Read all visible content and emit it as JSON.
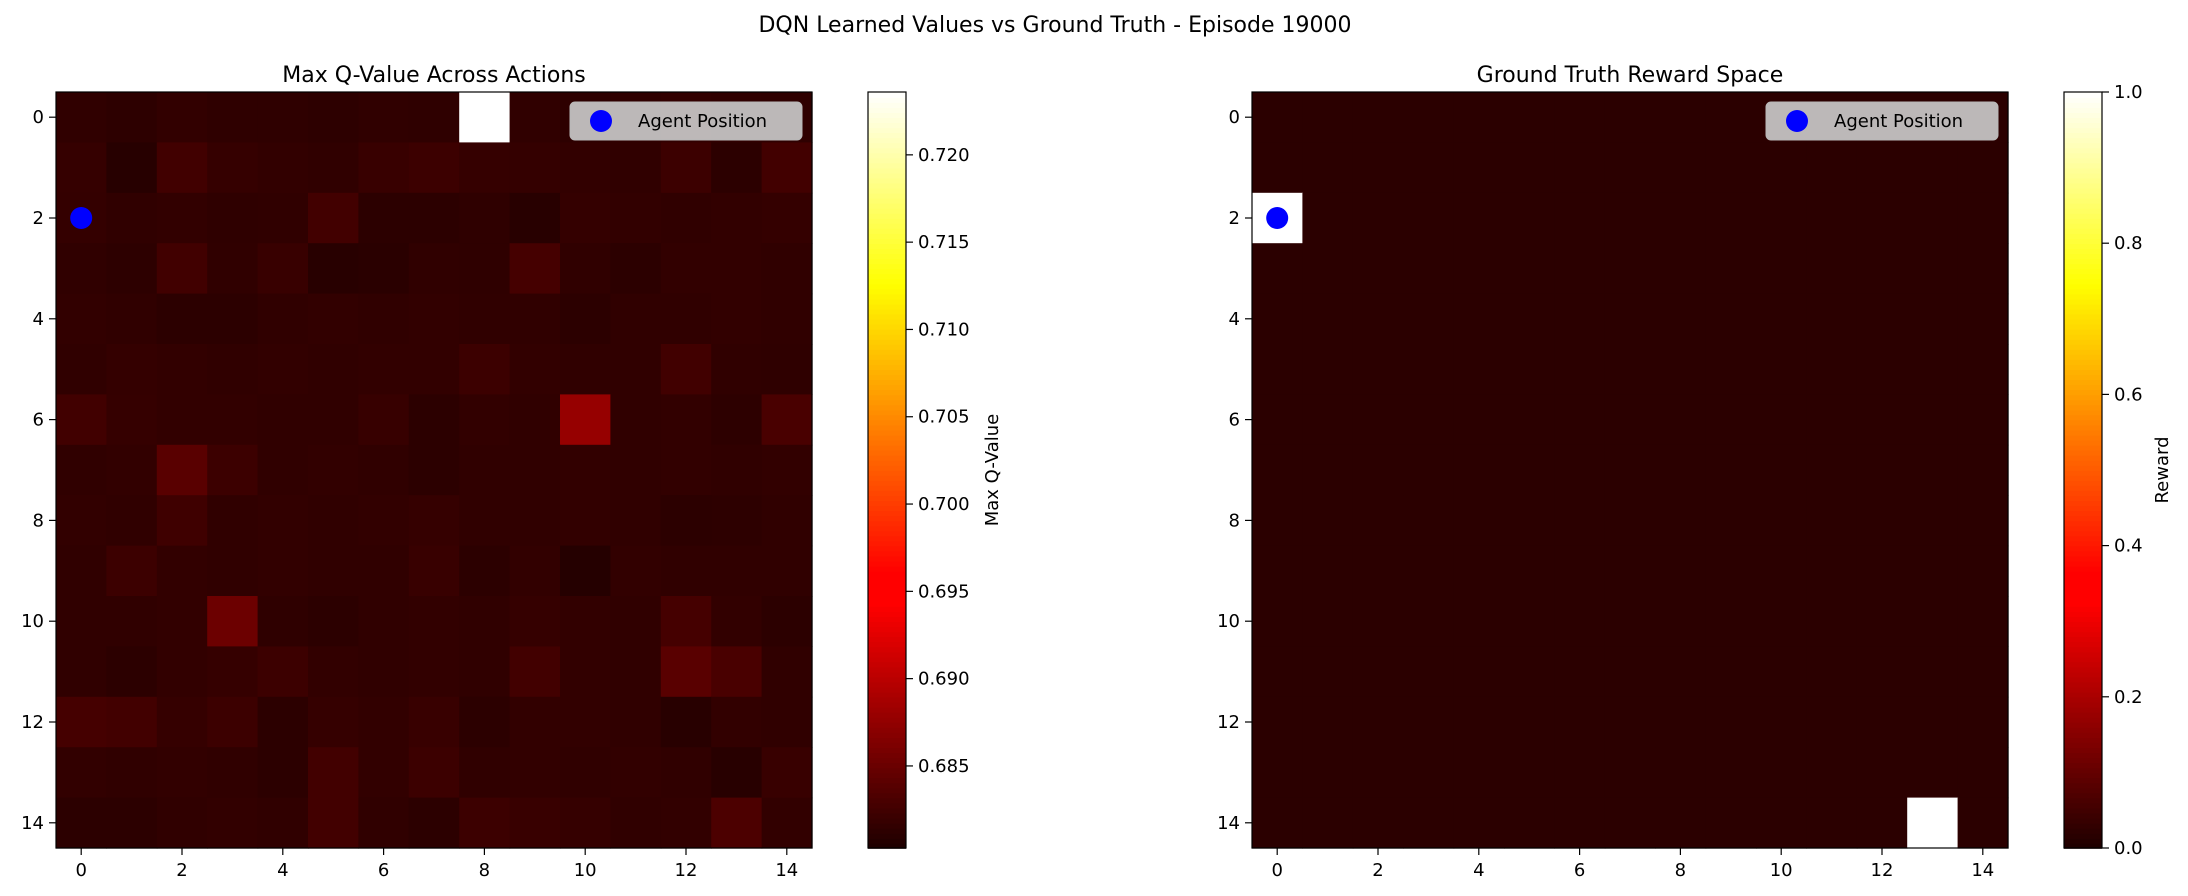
{
  "figure": {
    "suptitle": "DQN Learned Values vs Ground Truth - Episode 19000"
  },
  "chart_data": [
    {
      "type": "heatmap",
      "title": "Max Q-Value Across Actions",
      "xlabel": "",
      "ylabel": "",
      "colormap": "hot",
      "colorbar_label": "Max Q-Value",
      "vmin": 0.6803,
      "vmax": 0.7236,
      "colorbar_ticks": [
        0.685,
        0.69,
        0.695,
        0.7,
        0.705,
        0.71,
        0.715,
        0.72
      ],
      "x_ticks": [
        0,
        2,
        4,
        6,
        8,
        10,
        12,
        14
      ],
      "y_ticks": [
        0,
        2,
        4,
        6,
        8,
        10,
        12,
        14
      ],
      "legend": {
        "label": "Agent Position",
        "placement": "top-right",
        "marker_color": "#0000ff"
      },
      "agent_position": {
        "row": 2,
        "col": 0
      },
      "grid": [
        [
          0.6815,
          0.6813,
          0.6816,
          0.6814,
          0.6814,
          0.6813,
          0.6815,
          0.6814,
          0.7236,
          0.6815,
          0.6813,
          0.6814,
          0.6816,
          0.6815,
          0.6814
        ],
        [
          0.6818,
          0.6809,
          0.6825,
          0.6818,
          0.6816,
          0.6815,
          0.682,
          0.6822,
          0.6818,
          0.6817,
          0.6816,
          0.6815,
          0.6822,
          0.6812,
          0.6826
        ],
        [
          0.6817,
          0.6815,
          0.6816,
          0.6814,
          0.6815,
          0.6826,
          0.6812,
          0.6812,
          0.6814,
          0.681,
          0.6817,
          0.6816,
          0.6815,
          0.6816,
          0.6817
        ],
        [
          0.6815,
          0.6813,
          0.6825,
          0.6815,
          0.682,
          0.681,
          0.6811,
          0.6815,
          0.6814,
          0.6828,
          0.6815,
          0.6812,
          0.6816,
          0.6816,
          0.6815
        ],
        [
          0.6816,
          0.6815,
          0.6812,
          0.6812,
          0.6815,
          0.6816,
          0.6815,
          0.6816,
          0.6815,
          0.6815,
          0.6812,
          0.6815,
          0.6815,
          0.6816,
          0.6815
        ],
        [
          0.6815,
          0.6817,
          0.6816,
          0.6815,
          0.6816,
          0.6815,
          0.6816,
          0.6816,
          0.6822,
          0.6816,
          0.6815,
          0.6815,
          0.6825,
          0.6815,
          0.6814
        ],
        [
          0.6825,
          0.6818,
          0.6816,
          0.6816,
          0.6815,
          0.6815,
          0.6819,
          0.6812,
          0.6816,
          0.6815,
          0.6878,
          0.6815,
          0.6816,
          0.6813,
          0.683
        ],
        [
          0.6815,
          0.6816,
          0.684,
          0.6822,
          0.6815,
          0.6816,
          0.6815,
          0.6812,
          0.6815,
          0.6815,
          0.6816,
          0.6815,
          0.6816,
          0.6815,
          0.6816
        ],
        [
          0.6816,
          0.6815,
          0.6824,
          0.6815,
          0.6816,
          0.6815,
          0.6816,
          0.6818,
          0.6815,
          0.6815,
          0.6816,
          0.6815,
          0.6812,
          0.6813,
          0.6815
        ],
        [
          0.6815,
          0.6822,
          0.6816,
          0.6815,
          0.6816,
          0.6815,
          0.6815,
          0.682,
          0.6812,
          0.6816,
          0.6808,
          0.6816,
          0.6815,
          0.6815,
          0.6815
        ],
        [
          0.6815,
          0.6815,
          0.6816,
          0.6852,
          0.6814,
          0.6812,
          0.6815,
          0.6816,
          0.6815,
          0.6818,
          0.6816,
          0.6815,
          0.6828,
          0.6816,
          0.6812
        ],
        [
          0.6815,
          0.6812,
          0.6816,
          0.6818,
          0.6822,
          0.6816,
          0.6815,
          0.6816,
          0.6815,
          0.6826,
          0.6816,
          0.6815,
          0.684,
          0.683,
          0.6815
        ],
        [
          0.6828,
          0.6826,
          0.6818,
          0.6822,
          0.6812,
          0.6818,
          0.6816,
          0.682,
          0.6812,
          0.6816,
          0.6816,
          0.6815,
          0.681,
          0.6816,
          0.6815
        ],
        [
          0.6816,
          0.6815,
          0.6816,
          0.6815,
          0.6812,
          0.6826,
          0.6816,
          0.6822,
          0.6815,
          0.6816,
          0.6815,
          0.6816,
          0.6815,
          0.681,
          0.682
        ],
        [
          0.6812,
          0.6812,
          0.6815,
          0.6816,
          0.6815,
          0.6826,
          0.6815,
          0.6812,
          0.6822,
          0.682,
          0.6818,
          0.6815,
          0.6816,
          0.6832,
          0.6816
        ]
      ]
    },
    {
      "type": "heatmap",
      "title": "Ground Truth Reward Space",
      "xlabel": "",
      "ylabel": "",
      "colormap": "hot",
      "colorbar_label": "Reward",
      "vmin": 0.0,
      "vmax": 1.0,
      "colorbar_ticks": [
        0.0,
        0.2,
        0.4,
        0.6,
        0.8,
        1.0
      ],
      "x_ticks": [
        0,
        2,
        4,
        6,
        8,
        10,
        12,
        14
      ],
      "y_ticks": [
        0,
        2,
        4,
        6,
        8,
        10,
        12,
        14
      ],
      "legend": {
        "label": "Agent Position",
        "placement": "top-right",
        "marker_color": "#0000ff"
      },
      "agent_position": {
        "row": 2,
        "col": 0
      },
      "background_value": 0.02,
      "high_cells": [
        {
          "row": 2,
          "col": 0,
          "value": 1.0
        },
        {
          "row": 14,
          "col": 13,
          "value": 1.0
        }
      ]
    }
  ]
}
